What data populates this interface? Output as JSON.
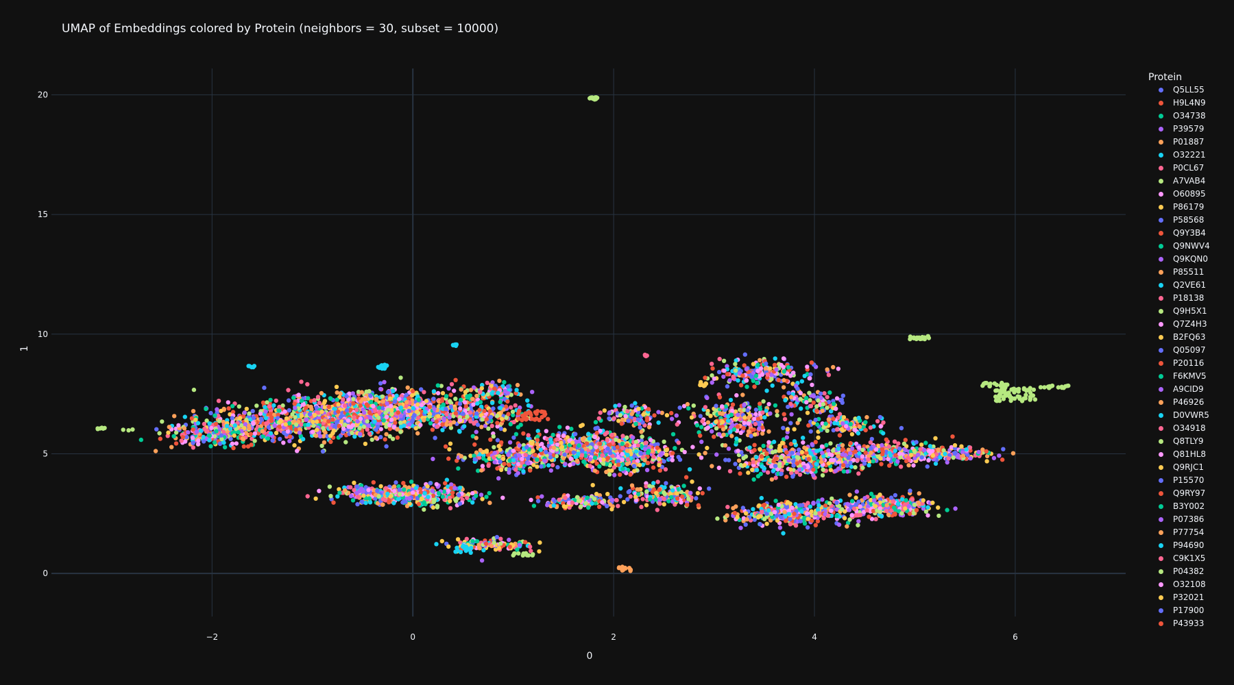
{
  "chart_data": {
    "type": "scatter",
    "title": "UMAP of Embeddings colored by Protein (neighbors = 30, subset = 10000)",
    "xlabel": "0",
    "ylabel": "1",
    "xlim": [
      -3.6,
      7.1
    ],
    "ylim": [
      -1.8,
      21.1
    ],
    "xticks": [
      -2,
      0,
      2,
      4,
      6
    ],
    "xtick_labels": [
      "−2",
      "0",
      "2",
      "4",
      "6"
    ],
    "yticks": [
      0,
      5,
      10,
      15,
      20
    ],
    "ytick_labels": [
      "0",
      "5",
      "10",
      "15",
      "20"
    ],
    "grid": true,
    "legend_title": "Protein",
    "legend_position": "right",
    "series": [
      {
        "name": "Q5LL55",
        "color": "#636efa"
      },
      {
        "name": "H9L4N9",
        "color": "#EF553B"
      },
      {
        "name": "O34738",
        "color": "#00cc96"
      },
      {
        "name": "P39579",
        "color": "#ab63fa"
      },
      {
        "name": "P01887",
        "color": "#FFA15A"
      },
      {
        "name": "O32221",
        "color": "#19d3f3"
      },
      {
        "name": "P0CL67",
        "color": "#FF6692"
      },
      {
        "name": "A7VAB4",
        "color": "#B6E880"
      },
      {
        "name": "O60895",
        "color": "#FF97FF"
      },
      {
        "name": "P86179",
        "color": "#FECB52"
      },
      {
        "name": "P58568",
        "color": "#636efa"
      },
      {
        "name": "Q9Y3B4",
        "color": "#EF553B"
      },
      {
        "name": "Q9NWV4",
        "color": "#00cc96"
      },
      {
        "name": "Q9KQN0",
        "color": "#ab63fa"
      },
      {
        "name": "P85511",
        "color": "#FFA15A"
      },
      {
        "name": "Q2VE61",
        "color": "#19d3f3"
      },
      {
        "name": "P18138",
        "color": "#FF6692"
      },
      {
        "name": "Q9H5X1",
        "color": "#B6E880"
      },
      {
        "name": "Q7Z4H3",
        "color": "#FF97FF"
      },
      {
        "name": "B2FQ63",
        "color": "#FECB52"
      },
      {
        "name": "Q05097",
        "color": "#636efa"
      },
      {
        "name": "P20116",
        "color": "#EF553B"
      },
      {
        "name": "F6KMV5",
        "color": "#00cc96"
      },
      {
        "name": "A9CID9",
        "color": "#ab63fa"
      },
      {
        "name": "P46926",
        "color": "#FFA15A"
      },
      {
        "name": "D0VWR5",
        "color": "#19d3f3"
      },
      {
        "name": "O34918",
        "color": "#FF6692"
      },
      {
        "name": "Q8TLY9",
        "color": "#B6E880"
      },
      {
        "name": "Q81HL8",
        "color": "#FF97FF"
      },
      {
        "name": "Q9RJC1",
        "color": "#FECB52"
      },
      {
        "name": "P15570",
        "color": "#636efa"
      },
      {
        "name": "Q9RY97",
        "color": "#EF553B"
      },
      {
        "name": "B3Y002",
        "color": "#00cc96"
      },
      {
        "name": "P07386",
        "color": "#ab63fa"
      },
      {
        "name": "P77754",
        "color": "#FFA15A"
      },
      {
        "name": "P94690",
        "color": "#19d3f3"
      },
      {
        "name": "C9K1X5",
        "color": "#FF6692"
      },
      {
        "name": "P04382",
        "color": "#B6E880"
      },
      {
        "name": "O32108",
        "color": "#FF97FF"
      },
      {
        "name": "P32021",
        "color": "#FECB52"
      },
      {
        "name": "P17900",
        "color": "#636efa"
      },
      {
        "name": "P43933",
        "color": "#EF553B"
      }
    ],
    "clusters": [
      {
        "cx": -0.3,
        "cy": 6.8,
        "rx": 0.9,
        "ry": 0.8,
        "n": 900
      },
      {
        "cx": -1.2,
        "cy": 6.3,
        "rx": 0.9,
        "ry": 0.7,
        "n": 550
      },
      {
        "cx": -2.0,
        "cy": 5.8,
        "rx": 0.45,
        "ry": 0.45,
        "n": 200
      },
      {
        "cx": 0.6,
        "cy": 6.6,
        "rx": 0.5,
        "ry": 0.6,
        "n": 180
      },
      {
        "cx": 0.8,
        "cy": 7.6,
        "rx": 0.25,
        "ry": 0.35,
        "n": 80
      },
      {
        "cx": -0.2,
        "cy": 3.3,
        "rx": 0.55,
        "ry": 0.35,
        "n": 300
      },
      {
        "cx": 0.2,
        "cy": 3.3,
        "rx": 0.45,
        "ry": 0.45,
        "n": 150
      },
      {
        "cx": 0.8,
        "cy": 1.2,
        "rx": 0.35,
        "ry": 0.25,
        "n": 110
      },
      {
        "cx": 1.0,
        "cy": 4.8,
        "rx": 0.5,
        "ry": 0.5,
        "n": 220
      },
      {
        "cx": 1.6,
        "cy": 5.3,
        "rx": 0.5,
        "ry": 0.6,
        "n": 300
      },
      {
        "cx": 2.1,
        "cy": 5.0,
        "rx": 0.5,
        "ry": 0.7,
        "n": 380
      },
      {
        "cx": 2.5,
        "cy": 3.3,
        "rx": 0.35,
        "ry": 0.4,
        "n": 150
      },
      {
        "cx": 1.7,
        "cy": 3.0,
        "rx": 0.35,
        "ry": 0.25,
        "n": 110
      },
      {
        "cx": 2.2,
        "cy": 6.6,
        "rx": 0.3,
        "ry": 0.45,
        "n": 100
      },
      {
        "cx": 3.5,
        "cy": 8.4,
        "rx": 0.45,
        "ry": 0.45,
        "n": 190
      },
      {
        "cx": 3.2,
        "cy": 6.4,
        "rx": 0.4,
        "ry": 0.9,
        "n": 250
      },
      {
        "cx": 3.8,
        "cy": 4.7,
        "rx": 0.55,
        "ry": 0.6,
        "n": 320
      },
      {
        "cx": 3.8,
        "cy": 2.5,
        "rx": 0.6,
        "ry": 0.45,
        "n": 320
      },
      {
        "cx": 4.7,
        "cy": 2.8,
        "rx": 0.45,
        "ry": 0.4,
        "n": 280
      },
      {
        "cx": 4.6,
        "cy": 5.0,
        "rx": 0.7,
        "ry": 0.45,
        "n": 280
      },
      {
        "cx": 5.3,
        "cy": 5.0,
        "rx": 0.45,
        "ry": 0.25,
        "n": 140
      },
      {
        "cx": 4.3,
        "cy": 6.2,
        "rx": 0.4,
        "ry": 0.4,
        "n": 110
      },
      {
        "cx": 4.0,
        "cy": 7.2,
        "rx": 0.3,
        "ry": 0.5,
        "n": 90
      }
    ],
    "small_groups": [
      {
        "cx": 1.8,
        "cy": 19.85,
        "rx": 0.04,
        "ry": 0.05,
        "n": 12,
        "color": "#B6E880"
      },
      {
        "cx": 0.42,
        "cy": 9.55,
        "rx": 0.02,
        "ry": 0.05,
        "n": 6,
        "color": "#19d3f3"
      },
      {
        "cx": 2.33,
        "cy": 9.1,
        "rx": 0.02,
        "ry": 0.05,
        "n": 5,
        "color": "#FF6692"
      },
      {
        "cx": -1.6,
        "cy": 8.65,
        "rx": 0.04,
        "ry": 0.05,
        "n": 5,
        "color": "#19d3f3"
      },
      {
        "cx": 5.05,
        "cy": 9.85,
        "rx": 0.1,
        "ry": 0.07,
        "n": 20,
        "color": "#B6E880"
      },
      {
        "cx": -3.1,
        "cy": 6.05,
        "rx": 0.04,
        "ry": 0.04,
        "n": 6,
        "color": "#B6E880"
      },
      {
        "cx": -2.85,
        "cy": 6.0,
        "rx": 0.07,
        "ry": 0.02,
        "n": 3,
        "color": "#B6E880"
      },
      {
        "cx": 6.0,
        "cy": 7.5,
        "rx": 0.2,
        "ry": 0.3,
        "n": 60,
        "color": "#B6E880"
      },
      {
        "cx": 6.4,
        "cy": 7.8,
        "rx": 0.15,
        "ry": 0.05,
        "n": 15,
        "color": "#B6E880"
      },
      {
        "cx": 5.8,
        "cy": 7.9,
        "rx": 0.15,
        "ry": 0.08,
        "n": 18,
        "color": "#B6E880"
      },
      {
        "cx": 2.1,
        "cy": 0.2,
        "rx": 0.1,
        "ry": 0.1,
        "n": 12,
        "color": "#FFA15A"
      },
      {
        "cx": 1.1,
        "cy": 0.8,
        "rx": 0.1,
        "ry": 0.05,
        "n": 14,
        "color": "#B6E880"
      },
      {
        "cx": 2.9,
        "cy": 7.9,
        "rx": 0.05,
        "ry": 0.1,
        "n": 8,
        "color": "#FECB52"
      },
      {
        "cx": -0.3,
        "cy": 8.65,
        "rx": 0.05,
        "ry": 0.1,
        "n": 10,
        "color": "#19d3f3"
      },
      {
        "cx": 1.2,
        "cy": 6.6,
        "rx": 0.15,
        "ry": 0.2,
        "n": 30,
        "color": "#EF553B"
      },
      {
        "cx": 0.5,
        "cy": 1.0,
        "rx": 0.08,
        "ry": 0.15,
        "n": 14,
        "color": "#19d3f3"
      }
    ]
  }
}
